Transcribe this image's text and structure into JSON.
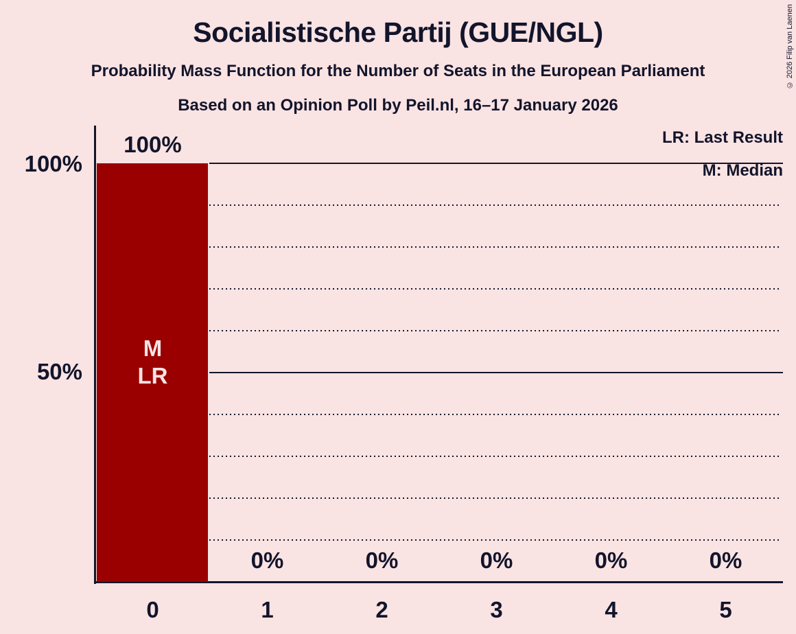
{
  "chart_data": {
    "type": "bar",
    "title": "Socialistische Partij (GUE/NGL)",
    "subtitle": "Probability Mass Function for the Number of Seats in the European Parliament",
    "poll_line": "Based on an Opinion Poll by Peil.nl, 16–17 January 2026",
    "copyright": "© 2026 Filip van Laenen",
    "legend": {
      "lr": "LR: Last Result",
      "m": "M: Median"
    },
    "legend_position": "top-right",
    "categories": [
      "0",
      "1",
      "2",
      "3",
      "4",
      "5"
    ],
    "values": [
      100,
      0,
      0,
      0,
      0,
      0
    ],
    "value_labels": [
      "100%",
      "0%",
      "0%",
      "0%",
      "0%",
      "0%"
    ],
    "bar_annotation": {
      "category": "0",
      "lines": [
        "M",
        "LR"
      ]
    },
    "median_seats": 0,
    "last_result_seats": 0,
    "xlabel": "",
    "ylabel": "",
    "ylim": [
      0,
      100
    ],
    "y_axis_ticks": [
      {
        "label": "100%",
        "value": 100
      },
      {
        "label": "50%",
        "value": 50
      }
    ],
    "solid_gridlines": [
      100,
      50
    ],
    "dotted_gridlines": [
      90,
      80,
      70,
      60,
      40,
      30,
      20,
      10
    ],
    "grid": "horizontal",
    "colors": {
      "bar": "#9a0000",
      "background": "#fae3e3",
      "ink": "#12152b",
      "bar_label": "#fae3e3"
    }
  }
}
